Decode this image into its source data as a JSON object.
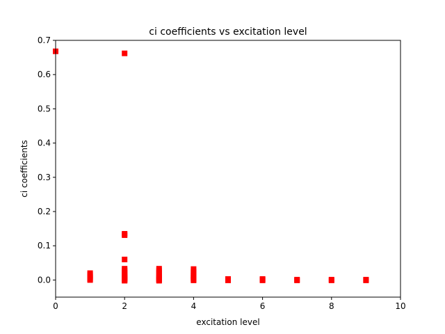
{
  "chart_data": {
    "type": "scatter",
    "title": "ci coefficients vs excitation level",
    "xlabel": "excitation level",
    "ylabel": "ci coefficients",
    "xlim": [
      0,
      10
    ],
    "ylim": [
      -0.05,
      0.7
    ],
    "xticks": [
      0,
      2,
      4,
      6,
      8,
      10
    ],
    "xtick_labels": [
      "0",
      "2",
      "4",
      "6",
      "8",
      "10"
    ],
    "yticks": [
      0.0,
      0.1,
      0.2,
      0.3,
      0.4,
      0.5,
      0.6,
      0.7
    ],
    "ytick_labels": [
      "0.0",
      "0.1",
      "0.2",
      "0.3",
      "0.4",
      "0.5",
      "0.6",
      "0.7"
    ],
    "grid": false,
    "marker": "square",
    "color": "#ff0000",
    "series": [
      {
        "x": [
          0,
          1,
          1,
          1,
          1,
          1,
          1,
          2,
          2,
          2,
          2,
          2,
          2,
          2,
          2,
          2,
          2,
          2,
          2,
          2,
          2,
          2,
          3,
          3,
          3,
          3,
          3,
          3,
          3,
          3,
          3,
          3,
          3,
          4,
          4,
          4,
          4,
          4,
          4,
          4,
          4,
          4,
          5,
          5,
          5,
          6,
          6,
          6,
          7,
          7,
          8,
          8,
          9,
          9
        ],
        "y": [
          0.668,
          0.02,
          0.015,
          0.01,
          0.006,
          0.003,
          0.0,
          0.662,
          0.135,
          0.131,
          0.06,
          0.033,
          0.028,
          0.022,
          0.018,
          0.014,
          0.01,
          0.007,
          0.004,
          0.002,
          0.0,
          -0.002,
          0.033,
          0.028,
          0.022,
          0.018,
          0.013,
          0.009,
          0.006,
          0.003,
          0.001,
          0.0,
          -0.002,
          0.032,
          0.025,
          0.02,
          0.015,
          0.011,
          0.007,
          0.004,
          0.001,
          -0.001,
          0.003,
          0.001,
          -0.001,
          0.003,
          0.001,
          -0.001,
          0.001,
          -0.001,
          0.001,
          -0.001,
          0.001,
          -0.001
        ]
      }
    ]
  }
}
